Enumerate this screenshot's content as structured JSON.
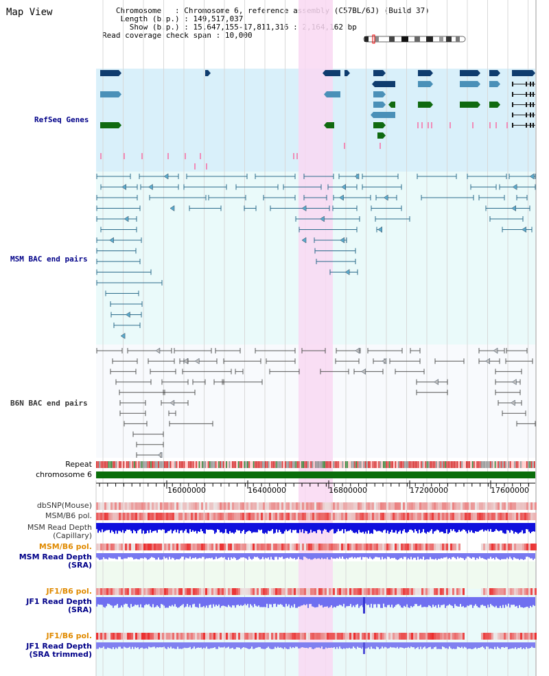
{
  "header": {
    "title": "Map View",
    "chromosome_key": "Chromosome",
    "chromosome_value": "Chromosome 6, reference assembly (C57BL/6J) (Build 37)",
    "length_key": "Length (b.p.)",
    "length_value": "149,517,037",
    "show_key": "Show (b.p.)",
    "show_value": "15,647,155-17,811,316 : 2,164,162 bp",
    "coverage_key": "Read coverage check span",
    "coverage_value": "10,000"
  },
  "tracks": {
    "refseq": "RefSeq Genes",
    "msm_bac": "MSM BAC end pairs",
    "b6n_bac": "B6N BAC end pairs",
    "repeat": "Repeat",
    "chromosome": "chromosome 6",
    "dbsnp": "dbSNP(Mouse)",
    "msm_b6_pol_1": "MSM/B6 pol.",
    "msm_read_depth_cap_1": "MSM Read Depth",
    "msm_read_depth_cap_2": "(Capillary)",
    "msm_b6_pol_2": "MSM/B6 pol.",
    "msm_read_depth_sra_1": "MSM Read Depth",
    "msm_read_depth_sra_2": "(SRA)",
    "jf1_b6_pol_1": "JF1/B6 pol.",
    "jf1_read_depth_1": "JF1 Read Depth",
    "jf1_read_depth_2": "(SRA)",
    "jf1_b6_pol_2": "JF1/B6 pol.",
    "jf1_read_depth_trim_1": "JF1 Read Depth",
    "jf1_read_depth_trim_2": "(SRA trimmed)"
  },
  "ruler": {
    "ticks": [
      "16000000",
      "16400000",
      "16800000",
      "17200000",
      "17600000"
    ]
  },
  "colors": {
    "refseq_bg": "#d9f0fa",
    "bac_bg": "#eafafa",
    "highlight": "#f9d8f2",
    "gene_dark": "#0f3c6e",
    "gene_mid": "#4a90b8",
    "gene_green": "#106a10",
    "chromosome": "#0a6e0a",
    "label_blue": "#000088",
    "label_orange": "#e08a00",
    "label_gray": "#333333"
  }
}
